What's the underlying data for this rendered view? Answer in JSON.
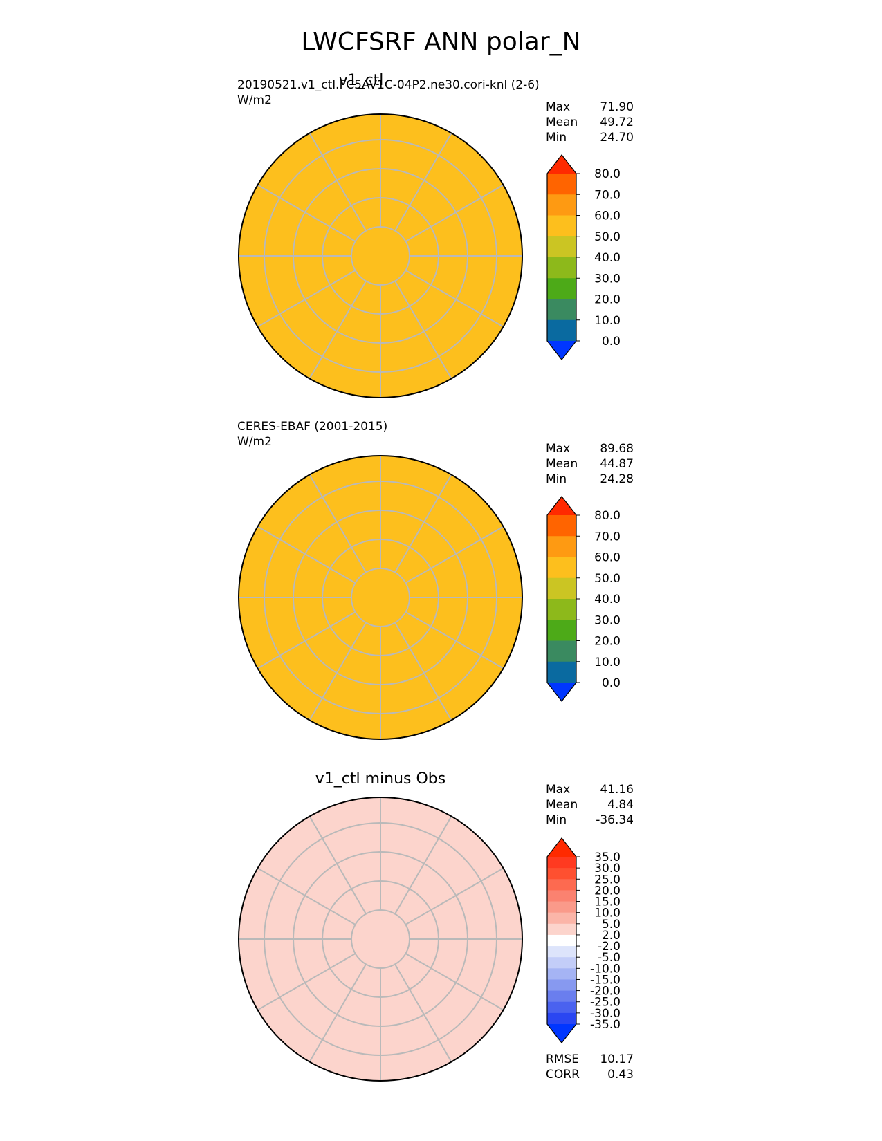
{
  "figure": {
    "title": "LWCFSRF ANN polar_N"
  },
  "chart_data": [
    {
      "type": "heatmap",
      "title": "v1_ctl",
      "caption_left": "20190521.v1_ctl.FC5AV1C-04P2.ne30.cori-knl (2-6)",
      "units": "W/m2",
      "projection": "north polar stereographic",
      "stats": {
        "max_label": "Max",
        "max": "71.90",
        "mean_label": "Mean",
        "mean": "49.72",
        "min_label": "Min",
        "min": "24.70"
      },
      "colorbar": {
        "ticks": [
          "80.0",
          "70.0",
          "60.0",
          "50.0",
          "40.0",
          "30.0",
          "20.0",
          "10.0",
          "0.0"
        ],
        "colors": [
          "#ff2a00",
          "#ff6400",
          "#fe9a12",
          "#fdbf1d",
          "#cbc523",
          "#8db91b",
          "#4daa18",
          "#3a8a60",
          "#0a6aa0",
          "#0036ff"
        ],
        "extend": "both"
      },
      "dominant_color": "#fdbf1d"
    },
    {
      "type": "heatmap",
      "title": "",
      "caption_left": "CERES-EBAF (2001-2015)",
      "units": "W/m2",
      "projection": "north polar stereographic",
      "stats": {
        "max_label": "Max",
        "max": "89.68",
        "mean_label": "Mean",
        "mean": "44.87",
        "min_label": "Min",
        "min": "24.28"
      },
      "colorbar": {
        "ticks": [
          "80.0",
          "70.0",
          "60.0",
          "50.0",
          "40.0",
          "30.0",
          "20.0",
          "10.0",
          "0.0"
        ],
        "colors": [
          "#ff2a00",
          "#ff6400",
          "#fe9a12",
          "#fdbf1d",
          "#cbc523",
          "#8db91b",
          "#4daa18",
          "#3a8a60",
          "#0a6aa0",
          "#0036ff"
        ],
        "extend": "both"
      },
      "dominant_color": "#fdbf1d"
    },
    {
      "type": "heatmap",
      "title": "v1_ctl minus Obs",
      "caption_left": "",
      "units": "",
      "projection": "north polar stereographic",
      "stats": {
        "max_label": "Max",
        "max": "41.16",
        "mean_label": "Mean",
        "mean": "4.84",
        "min_label": "Min",
        "min": "-36.34"
      },
      "colorbar": {
        "ticks": [
          "35.0",
          "30.0",
          "25.0",
          "20.0",
          "15.0",
          "10.0",
          "5.0",
          "2.0",
          "-2.0",
          "-5.0",
          "-10.0",
          "-15.0",
          "-20.0",
          "-25.0",
          "-30.0",
          "-35.0"
        ],
        "colors": [
          "#ff2a00",
          "#ff3a20",
          "#fe5030",
          "#fd6a50",
          "#fb8270",
          "#fa9a8a",
          "#fbb5a8",
          "#fcd4cc",
          "#ffffff",
          "#dde4fb",
          "#c3cdf8",
          "#a5b4f4",
          "#8799f0",
          "#6a7eee",
          "#4a62ef",
          "#2a46f2",
          "#0036ff"
        ],
        "extend": "both"
      },
      "rmse_label": "RMSE",
      "rmse": "10.17",
      "corr_label": "CORR",
      "corr": "0.43",
      "dominant_color": "#fcd4cc"
    }
  ]
}
